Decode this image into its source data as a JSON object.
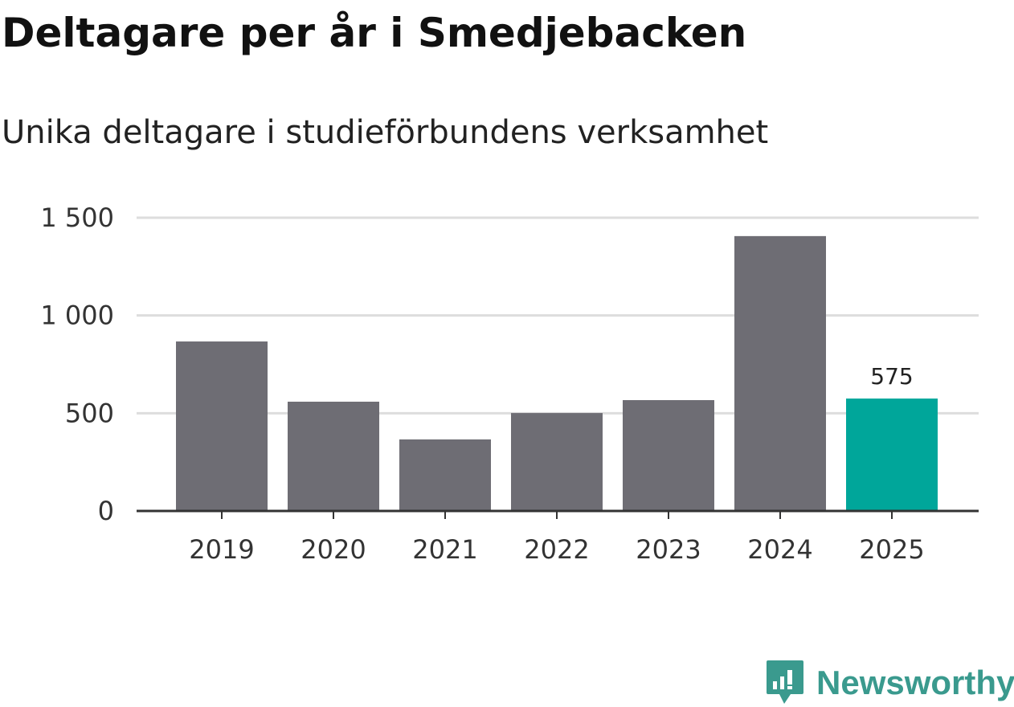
{
  "chart_data": {
    "type": "bar",
    "title": "Deltagare per år i Smedjebacken",
    "subtitle": "Unika deltagare i studieförbundens verksamhet",
    "categories": [
      "2019",
      "2020",
      "2021",
      "2022",
      "2023",
      "2024",
      "2025"
    ],
    "values": [
      867,
      559,
      366,
      501,
      567,
      1406,
      575
    ],
    "highlight_index": 6,
    "data_labels": [
      {
        "index": 6,
        "text": "575"
      }
    ],
    "ylim": [
      0,
      1500
    ],
    "yticks": [
      0,
      500,
      1000,
      1500
    ],
    "ytick_labels": [
      "0",
      "500",
      "1 000",
      "1 500"
    ],
    "xlabel": "",
    "ylabel": "",
    "grid": true,
    "colors": {
      "bar": "#6e6d74",
      "highlight": "#00a69a",
      "grid": "#dddddd",
      "axis": "#333333"
    }
  },
  "brand": {
    "name": "Newsworthy",
    "color": "#3a9a8e"
  }
}
